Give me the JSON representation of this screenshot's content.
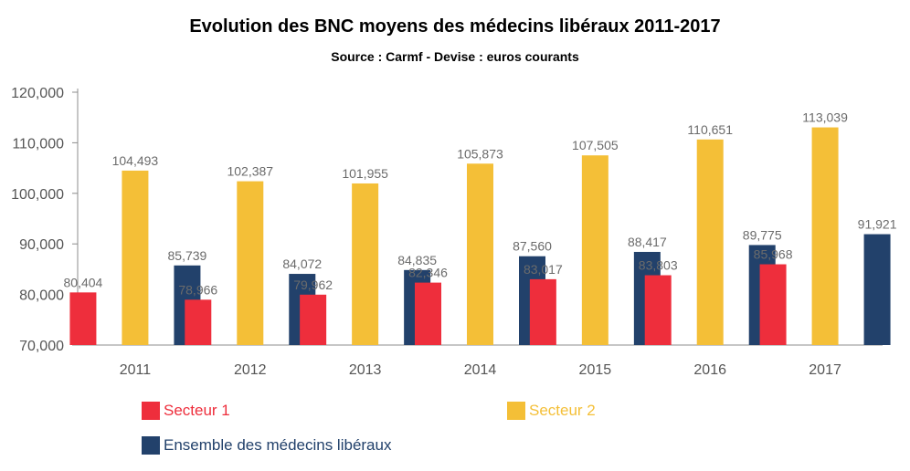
{
  "title": "Evolution des BNC moyens des médecins libéraux 2011-2017",
  "subtitle": "Source : Carmf - Devise : euros courants",
  "chart_data": {
    "type": "bar",
    "title": "Evolution des BNC moyens des médecins libéraux 2011-2017",
    "subtitle": "Source : Carmf - Devise : euros courants",
    "categories": [
      "2011",
      "2012",
      "2013",
      "2014",
      "2015",
      "2016",
      "2017"
    ],
    "series": [
      {
        "name": "Secteur 1",
        "color": "#ee2e3c",
        "values": [
          80404,
          78966,
          79962,
          82346,
          83017,
          83803,
          85968
        ],
        "labels": [
          "80,404",
          "78,966",
          "79,962",
          "82,346",
          "83,017",
          "83,803",
          "85,968"
        ]
      },
      {
        "name": "Secteur 2",
        "color": "#f4bf37",
        "values": [
          104493,
          102387,
          101955,
          105873,
          107505,
          110651,
          113039
        ],
        "labels": [
          "104,493",
          "102,387",
          "101,955",
          "105,873",
          "107,505",
          "110,651",
          "113,039"
        ]
      },
      {
        "name": "Ensemble des médecins libéraux",
        "color": "#22416b",
        "values": [
          85739,
          84072,
          84835,
          87560,
          88417,
          89775,
          91921
        ],
        "labels": [
          "85,739",
          "84,072",
          "84,835",
          "87,560",
          "88,417",
          "89,775",
          "91,921"
        ]
      }
    ],
    "ylim": [
      70000,
      120000
    ],
    "yticks": [
      "70,000",
      "80,000",
      "90,000",
      "100,000",
      "110,000",
      "120,000"
    ],
    "grid": false,
    "legend": "bottom"
  }
}
